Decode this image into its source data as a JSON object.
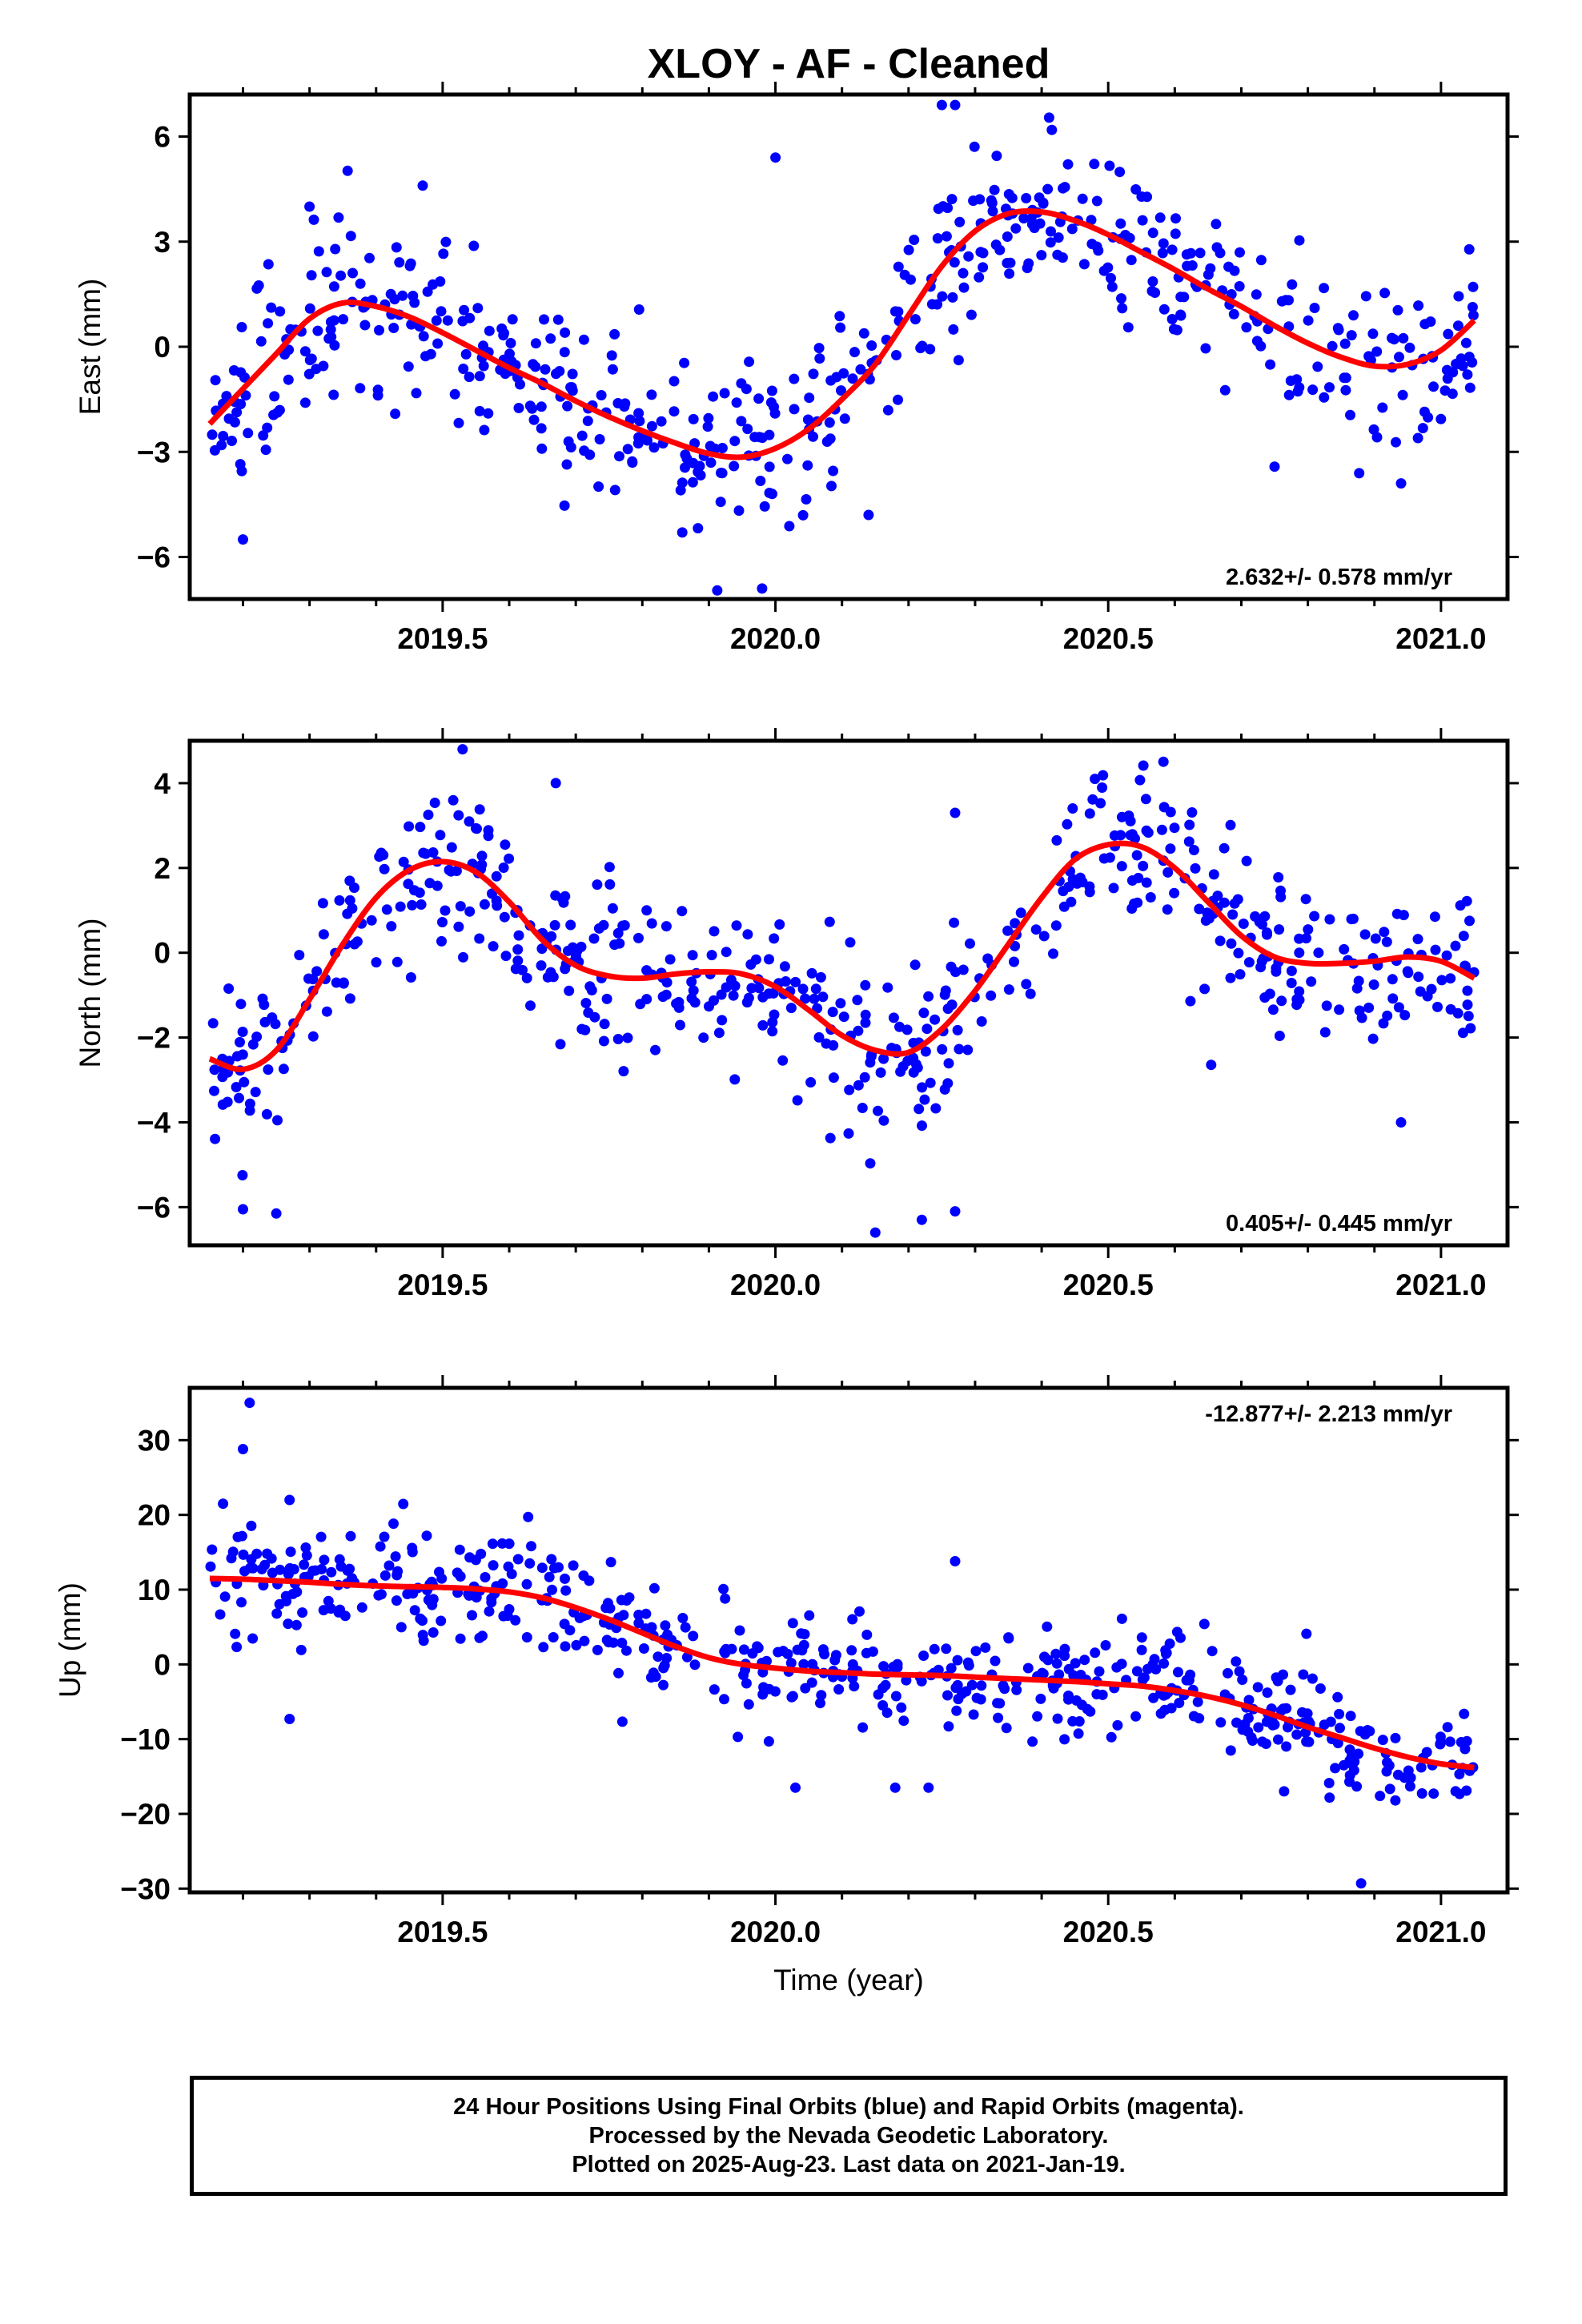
{
  "title": "XLOY  - AF - Cleaned",
  "xlabel": "Time (year)",
  "colors": {
    "points": "#0000ff",
    "fit": "#ff0000",
    "axis": "#000000"
  },
  "chart_data": [
    {
      "type": "scatter",
      "ylabel": "East (mm)",
      "xlim": [
        2019.12,
        2021.1
      ],
      "ylim": [
        -7.2,
        7.2
      ],
      "yticks": [
        6,
        3,
        0,
        -3,
        -6
      ],
      "ytick_labels": [
        "6",
        "3",
        "0",
        "−3",
        "−6"
      ],
      "xticks": [
        2019.5,
        2020.0,
        2020.5,
        2021.0
      ],
      "xtick_labels": [
        "2019.5",
        "2020.0",
        "2020.5",
        "2021.0"
      ],
      "rate_label": "2.632+/- 0.578 mm/yr",
      "rate_position": "bottom-right",
      "fit_curve": {
        "name": "",
        "x": [
          2019.15,
          2019.2,
          2019.25,
          2019.3,
          2019.35,
          2019.4,
          2019.45,
          2019.5,
          2019.55,
          2019.6,
          2019.65,
          2019.7,
          2019.75,
          2019.8,
          2019.85,
          2019.9,
          2019.95,
          2020.0,
          2020.05,
          2020.1,
          2020.15,
          2020.2,
          2020.25,
          2020.3,
          2020.35,
          2020.4,
          2020.45,
          2020.5,
          2020.55,
          2020.6,
          2020.65,
          2020.7,
          2020.75,
          2020.8,
          2020.85,
          2020.9,
          2020.95,
          2021.0,
          2021.05
        ],
        "y": [
          -2.2,
          -1.2,
          -0.2,
          0.8,
          1.25,
          1.15,
          0.85,
          0.4,
          -0.1,
          -0.6,
          -1.05,
          -1.55,
          -2.0,
          -2.4,
          -2.75,
          -3.05,
          -3.15,
          -2.9,
          -2.35,
          -1.5,
          -0.5,
          0.9,
          2.3,
          3.3,
          3.8,
          3.85,
          3.6,
          3.2,
          2.7,
          2.2,
          1.65,
          1.15,
          0.6,
          0.1,
          -0.3,
          -0.55,
          -0.5,
          -0.1,
          0.75
        ]
      },
      "scatter": {
        "name": "",
        "n_points": 560,
        "x_range": [
          2019.15,
          2021.05
        ],
        "scatter_sd": 1.15,
        "outliers": [
          [
            2019.2,
            -5.5
          ],
          [
            2019.3,
            4.0
          ],
          [
            2019.47,
            4.6
          ],
          [
            2019.98,
            -6.9
          ],
          [
            2020.0,
            5.4
          ],
          [
            2020.25,
            6.9
          ],
          [
            2020.27,
            6.9
          ],
          [
            2020.14,
            -4.8
          ],
          [
            2019.86,
            -5.3
          ],
          [
            2020.94,
            -3.9
          ]
        ]
      }
    },
    {
      "type": "scatter",
      "ylabel": "North (mm)",
      "xlim": [
        2019.12,
        2021.1
      ],
      "ylim": [
        -6.9,
        5.0
      ],
      "yticks": [
        4,
        2,
        0,
        -2,
        -4,
        -6
      ],
      "ytick_labels": [
        "4",
        "2",
        "0",
        "−2",
        "−4",
        "−6"
      ],
      "xticks": [
        2019.5,
        2020.0,
        2020.5,
        2021.0
      ],
      "xtick_labels": [
        "2019.5",
        "2020.0",
        "2020.5",
        "2021.0"
      ],
      "rate_label": "0.405+/- 0.445 mm/yr",
      "rate_position": "bottom-right",
      "fit_curve": {
        "name": "",
        "x": [
          2019.15,
          2019.2,
          2019.25,
          2019.3,
          2019.35,
          2019.4,
          2019.45,
          2019.5,
          2019.55,
          2019.6,
          2019.65,
          2019.7,
          2019.75,
          2019.8,
          2019.85,
          2019.9,
          2019.95,
          2020.0,
          2020.05,
          2020.1,
          2020.15,
          2020.2,
          2020.25,
          2020.3,
          2020.35,
          2020.4,
          2020.45,
          2020.5,
          2020.55,
          2020.6,
          2020.65,
          2020.7,
          2020.75,
          2020.8,
          2020.85,
          2020.9,
          2020.95,
          2021.0,
          2021.05
        ],
        "y": [
          -2.5,
          -2.75,
          -2.3,
          -1.1,
          0.2,
          1.3,
          1.95,
          2.15,
          1.9,
          1.2,
          0.3,
          -0.3,
          -0.55,
          -0.6,
          -0.5,
          -0.45,
          -0.5,
          -0.8,
          -1.35,
          -1.95,
          -2.3,
          -2.35,
          -1.8,
          -0.9,
          0.2,
          1.3,
          2.2,
          2.55,
          2.5,
          2.0,
          1.2,
          0.4,
          -0.1,
          -0.25,
          -0.25,
          -0.2,
          -0.1,
          -0.2,
          -0.6
        ]
      },
      "scatter": {
        "name": "",
        "n_points": 560,
        "x_range": [
          2019.15,
          2021.05
        ],
        "scatter_sd": 0.95,
        "outliers": [
          [
            2019.53,
            4.8
          ],
          [
            2019.67,
            4.0
          ],
          [
            2019.2,
            -6.05
          ],
          [
            2019.25,
            -6.15
          ],
          [
            2020.15,
            -6.6
          ],
          [
            2020.22,
            -6.3
          ],
          [
            2020.27,
            -6.1
          ],
          [
            2020.27,
            3.3
          ],
          [
            2020.94,
            -4.0
          ],
          [
            2020.48,
            4.1
          ]
        ]
      }
    },
    {
      "type": "scatter",
      "ylabel": "Up (mm)",
      "xlim": [
        2019.12,
        2021.1
      ],
      "ylim": [
        -30.5,
        37
      ],
      "yticks": [
        30,
        20,
        10,
        0,
        -10,
        -20,
        -30
      ],
      "ytick_labels": [
        "30",
        "20",
        "10",
        "0",
        "−10",
        "−20",
        "−30"
      ],
      "xticks": [
        2019.5,
        2020.0,
        2020.5,
        2021.0
      ],
      "xtick_labels": [
        "2019.5",
        "2020.0",
        "2020.5",
        "2021.0"
      ],
      "rate_label": "-12.877+/- 2.213 mm/yr",
      "rate_position": "top-right",
      "fit_curve": {
        "name": "",
        "x": [
          2019.15,
          2019.2,
          2019.25,
          2019.3,
          2019.35,
          2019.4,
          2019.45,
          2019.5,
          2019.55,
          2019.6,
          2019.65,
          2019.7,
          2019.75,
          2019.8,
          2019.85,
          2019.9,
          2019.95,
          2020.0,
          2020.05,
          2020.1,
          2020.15,
          2020.2,
          2020.25,
          2020.3,
          2020.35,
          2020.4,
          2020.45,
          2020.5,
          2020.55,
          2020.6,
          2020.65,
          2020.7,
          2020.75,
          2020.8,
          2020.85,
          2020.9,
          2020.95,
          2021.0,
          2021.05
        ],
        "y": [
          11.5,
          11.4,
          11.2,
          11.0,
          10.7,
          10.5,
          10.4,
          10.3,
          10.1,
          9.7,
          8.9,
          7.6,
          6.0,
          4.2,
          2.4,
          0.9,
          0.0,
          -0.5,
          -0.9,
          -1.1,
          -1.3,
          -1.4,
          -1.5,
          -1.7,
          -1.9,
          -2.1,
          -2.3,
          -2.6,
          -2.9,
          -3.5,
          -4.3,
          -5.4,
          -6.8,
          -8.4,
          -9.8,
          -11.2,
          -12.4,
          -13.3,
          -13.8
        ]
      },
      "scatter": {
        "name": "",
        "n_points": 560,
        "x_range": [
          2019.15,
          2021.05
        ],
        "scatter_sd": 3.6,
        "outliers": [
          [
            2019.17,
            21.5
          ],
          [
            2019.2,
            28.8
          ],
          [
            2019.21,
            35.0
          ],
          [
            2019.27,
            22.0
          ],
          [
            2019.27,
            -7.3
          ],
          [
            2020.18,
            -16.5
          ],
          [
            2020.23,
            -16.5
          ],
          [
            2020.27,
            13.8
          ],
          [
            2020.88,
            -29.3
          ],
          [
            2020.03,
            -16.5
          ]
        ]
      }
    }
  ],
  "caption": {
    "line1": "24 Hour Positions Using Final Orbits (blue) and Rapid Orbits (magenta).",
    "line2": "Processed by the Nevada Geodetic Laboratory.",
    "line3": "Plotted on 2025-Aug-23. Last data on 2021-Jan-19."
  }
}
